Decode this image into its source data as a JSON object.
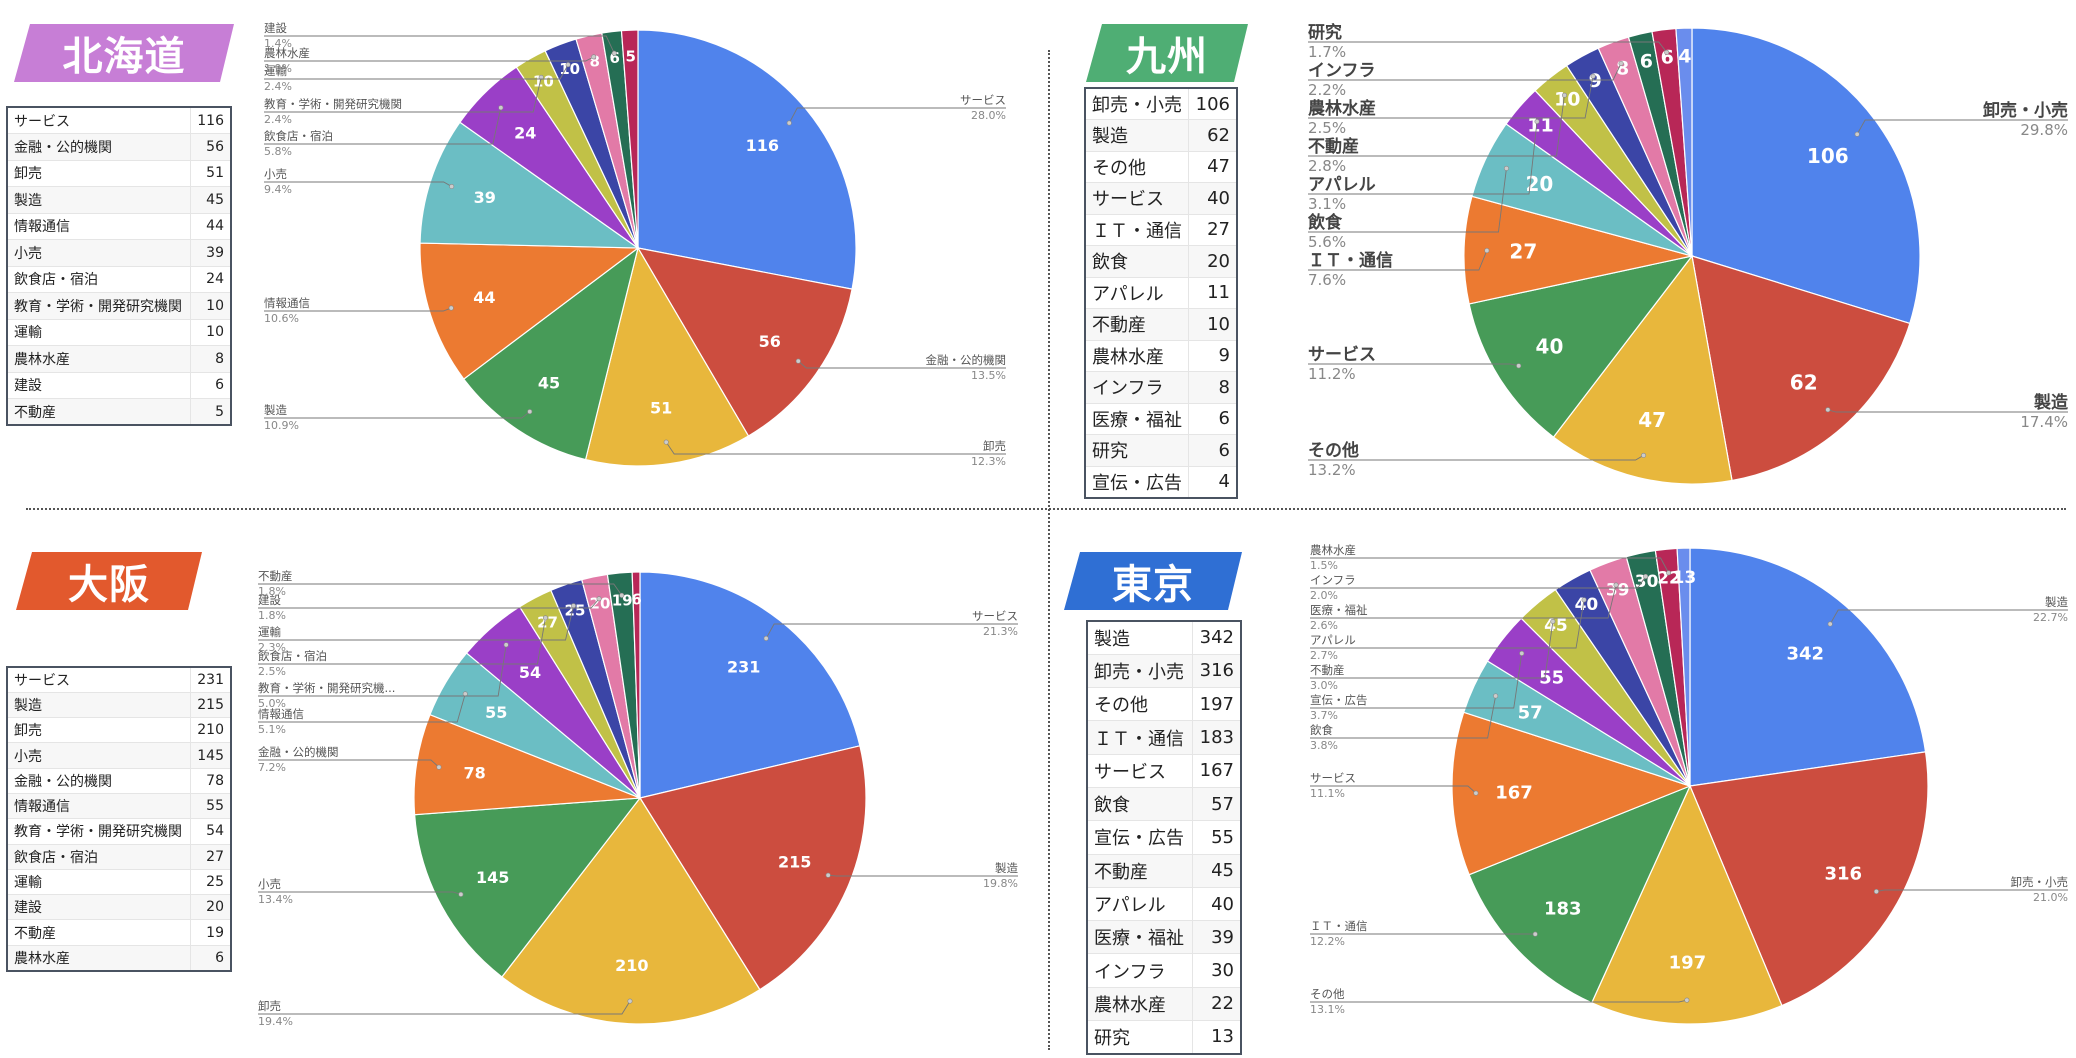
{
  "regions": [
    {
      "id": "hokkaido",
      "title": "北海道",
      "tag_color": "#c77ed6",
      "label_style": "small",
      "table": [
        [
          "サービス",
          "116"
        ],
        [
          "金融・公的機関",
          "56"
        ],
        [
          "卸売",
          "51"
        ],
        [
          "製造",
          "45"
        ],
        [
          "情報通信",
          "44"
        ],
        [
          "小売",
          "39"
        ],
        [
          "飲食店・宿泊",
          "24"
        ],
        [
          "教育・学術・開発研究機関",
          "10"
        ],
        [
          "運輸",
          "10"
        ],
        [
          "農林水産",
          "8"
        ],
        [
          "建設",
          "6"
        ],
        [
          "不動産",
          "5"
        ]
      ],
      "chart_data": {
        "type": "pie",
        "categories": [
          "サービス",
          "金融・公的機関",
          "卸売",
          "製造",
          "情報通信",
          "小売",
          "飲食店・宿泊",
          "教育・学術・開発研究機関",
          "運輸",
          "農林水産",
          "建設",
          "不動産"
        ],
        "values": [
          116,
          56,
          51,
          45,
          44,
          39,
          24,
          10,
          10,
          8,
          6,
          5
        ],
        "percents": [
          "28.0%",
          "13.5%",
          "12.3%",
          "10.9%",
          "10.6%",
          "9.4%",
          "5.8%",
          "2.4%",
          "2.4%",
          "1.9%",
          "1.4%",
          "1.2%"
        ],
        "slice_labels": [
          "116",
          "56",
          "51",
          "45",
          "44",
          "39",
          "24",
          "10",
          "10",
          "8",
          "6",
          "5"
        ],
        "show_callout": [
          true,
          true,
          true,
          true,
          true,
          true,
          true,
          true,
          true,
          true,
          true,
          false
        ]
      }
    },
    {
      "id": "kyushu",
      "title": "九州",
      "tag_color": "#4fae74",
      "label_style": "large",
      "table": [
        [
          "卸売・小売",
          "106"
        ],
        [
          "製造",
          "62"
        ],
        [
          "その他",
          "47"
        ],
        [
          "サービス",
          "40"
        ],
        [
          "ＩＴ・通信",
          "27"
        ],
        [
          "飲食",
          "20"
        ],
        [
          "アパレル",
          "11"
        ],
        [
          "不動産",
          "10"
        ],
        [
          "農林水産",
          "9"
        ],
        [
          "インフラ",
          "8"
        ],
        [
          "医療・福祉",
          "6"
        ],
        [
          "研究",
          "6"
        ],
        [
          "宣伝・広告",
          "4"
        ]
      ],
      "chart_data": {
        "type": "pie",
        "categories": [
          "卸売・小売",
          "製造",
          "その他",
          "サービス",
          "ＩＴ・通信",
          "飲食",
          "アパレル",
          "不動産",
          "農林水産",
          "インフラ",
          "医療・福祉",
          "研究",
          "宣伝・広告"
        ],
        "values": [
          106,
          62,
          47,
          40,
          27,
          20,
          11,
          10,
          9,
          8,
          6,
          6,
          4
        ],
        "percents": [
          "29.8%",
          "17.4%",
          "13.2%",
          "11.2%",
          "7.6%",
          "5.6%",
          "3.1%",
          "2.8%",
          "2.5%",
          "2.2%",
          "1.7%",
          "1.7%",
          "1.1%"
        ],
        "slice_labels": [
          "106",
          "62",
          "47",
          "40",
          "27",
          "20",
          "11",
          "10",
          "9",
          "8",
          "6",
          "6",
          "4"
        ],
        "show_callout": [
          true,
          true,
          true,
          true,
          true,
          true,
          true,
          true,
          true,
          true,
          false,
          true,
          false
        ]
      }
    },
    {
      "id": "osaka",
      "title": "大阪",
      "tag_color": "#e2592d",
      "label_style": "small",
      "table": [
        [
          "サービス",
          "231"
        ],
        [
          "製造",
          "215"
        ],
        [
          "卸売",
          "210"
        ],
        [
          "小売",
          "145"
        ],
        [
          "金融・公的機関",
          "78"
        ],
        [
          "情報通信",
          "55"
        ],
        [
          "教育・学術・開発研究機関",
          "54"
        ],
        [
          "飲食店・宿泊",
          "27"
        ],
        [
          "運輸",
          "25"
        ],
        [
          "建設",
          "20"
        ],
        [
          "不動産",
          "19"
        ],
        [
          "農林水産",
          "6"
        ]
      ],
      "chart_data": {
        "type": "pie",
        "categories": [
          "サービス",
          "製造",
          "卸売",
          "小売",
          "金融・公的機関",
          "情報通信",
          "教育・学術・開発研究機関",
          "飲食店・宿泊",
          "運輸",
          "建設",
          "不動産",
          "農林水産"
        ],
        "values": [
          231,
          215,
          210,
          145,
          78,
          55,
          54,
          27,
          25,
          20,
          19,
          6
        ],
        "percents": [
          "21.3%",
          "19.8%",
          "19.4%",
          "13.4%",
          "7.2%",
          "5.1%",
          "5.0%",
          "2.5%",
          "2.3%",
          "1.8%",
          "1.8%",
          "0.6%"
        ],
        "slice_labels": [
          "231",
          "215",
          "210",
          "145",
          "78",
          "55",
          "54",
          "27",
          "25",
          "20",
          "19",
          "6"
        ],
        "callout_names": [
          "サービス",
          "製造",
          "卸売",
          "小売",
          "金融・公的機関",
          "情報通信",
          "教育・学術・開発研究機...",
          "飲食店・宿泊",
          "運輸",
          "建設",
          "不動産",
          "農林水産"
        ],
        "show_callout": [
          true,
          true,
          true,
          true,
          true,
          true,
          true,
          true,
          true,
          true,
          true,
          false
        ]
      }
    },
    {
      "id": "tokyo",
      "title": "東京",
      "tag_color": "#2f6fd4",
      "label_style": "small",
      "table": [
        [
          "製造",
          "342"
        ],
        [
          "卸売・小売",
          "316"
        ],
        [
          "その他",
          "197"
        ],
        [
          "ＩＴ・通信",
          "183"
        ],
        [
          "サービス",
          "167"
        ],
        [
          "飲食",
          "57"
        ],
        [
          "宣伝・広告",
          "55"
        ],
        [
          "不動産",
          "45"
        ],
        [
          "アパレル",
          "40"
        ],
        [
          "医療・福祉",
          "39"
        ],
        [
          "インフラ",
          "30"
        ],
        [
          "農林水産",
          "22"
        ],
        [
          "研究",
          "13"
        ]
      ],
      "chart_data": {
        "type": "pie",
        "categories": [
          "製造",
          "卸売・小売",
          "その他",
          "ＩＴ・通信",
          "サービス",
          "飲食",
          "宣伝・広告",
          "不動産",
          "アパレル",
          "医療・福祉",
          "インフラ",
          "農林水産",
          "研究"
        ],
        "values": [
          342,
          316,
          197,
          183,
          167,
          57,
          55,
          45,
          40,
          39,
          30,
          22,
          13
        ],
        "percents": [
          "22.7%",
          "21.0%",
          "13.1%",
          "12.2%",
          "11.1%",
          "3.8%",
          "3.7%",
          "3.0%",
          "2.7%",
          "2.6%",
          "2.0%",
          "1.5%",
          "0.9%"
        ],
        "slice_labels": [
          "342",
          "316",
          "197",
          "183",
          "167",
          "57",
          "55",
          "45",
          "40",
          "39",
          "30",
          "22",
          "13"
        ],
        "show_callout": [
          true,
          true,
          true,
          true,
          true,
          true,
          true,
          true,
          true,
          true,
          true,
          true,
          false
        ]
      }
    }
  ],
  "slice_colors": [
    "#5083ec",
    "#cc4d3f",
    "#e8b73c",
    "#479b58",
    "#ec7a31",
    "#6bbec4",
    "#9a3fc7",
    "#c1c147",
    "#3b45a6",
    "#e27aa7",
    "#256e54",
    "#b82757",
    "#6a8ded"
  ]
}
